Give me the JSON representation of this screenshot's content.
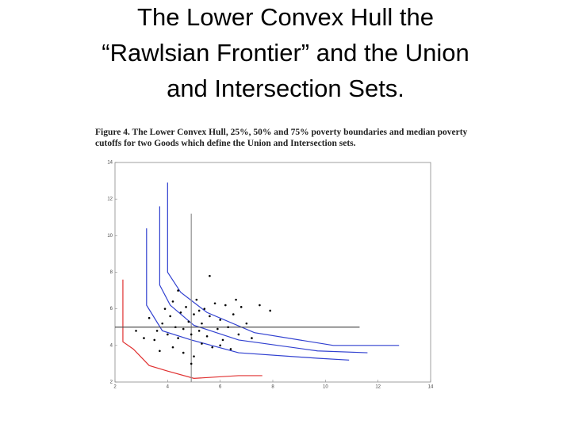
{
  "chart_data": {
    "type": "scatter",
    "title": [
      "The Lower Convex Hull the",
      "“Rawlsian Frontier” and the Union",
      "and Intersection Sets."
    ],
    "caption": [
      "Figure 4. The Lower Convex Hull, 25%, 50% and 75% poverty boundaries and median poverty",
      "cutoffs for two Goods which define the Union and Intersection sets."
    ],
    "xlim": [
      2,
      14
    ],
    "ylim": [
      2,
      14
    ],
    "xticks": [
      2,
      4,
      6,
      8,
      10,
      12,
      14
    ],
    "yticks": [
      2,
      4,
      6,
      8,
      10,
      12,
      14
    ],
    "lines": [
      {
        "color": "#e03030",
        "x": [
          2.3,
          2.3,
          2.7,
          3.3,
          4.0,
          5.0,
          6.7,
          7.6
        ],
        "values": [
          7.6,
          4.2,
          3.8,
          2.9,
          2.6,
          2.2,
          2.35,
          2.35
        ]
      },
      {
        "color": "#3040d0",
        "x": [
          3.2,
          3.2,
          3.8,
          4.9,
          6.7,
          9.7,
          10.9
        ],
        "values": [
          10.4,
          6.2,
          4.8,
          4.3,
          3.6,
          3.3,
          3.2
        ]
      },
      {
        "color": "#3040d0",
        "x": [
          3.7,
          3.7,
          4.1,
          5.0,
          6.7,
          9.7,
          11.6
        ],
        "values": [
          11.6,
          7.3,
          6.2,
          5.1,
          4.3,
          3.7,
          3.6
        ]
      },
      {
        "color": "#3040d0",
        "x": [
          4.0,
          4.0,
          4.5,
          5.5,
          7.3,
          10.3,
          12.8
        ],
        "values": [
          12.9,
          8.0,
          6.9,
          5.8,
          4.7,
          4.0,
          4.0
        ]
      },
      {
        "color": "#909090",
        "x": [
          4.9,
          4.9
        ],
        "values": [
          11.2,
          2.0
        ]
      },
      {
        "color": "#505050",
        "x": [
          2.0,
          11.3
        ],
        "values": [
          5.0,
          5.0
        ]
      }
    ],
    "points": {
      "color": "#000000",
      "x": [
        3.3,
        3.5,
        3.6,
        3.8,
        3.9,
        4.0,
        4.1,
        4.2,
        4.2,
        4.3,
        4.4,
        4.5,
        4.6,
        4.6,
        4.7,
        4.8,
        4.9,
        5.0,
        5.0,
        5.1,
        5.2,
        5.3,
        5.3,
        5.4,
        5.5,
        5.6,
        5.7,
        5.8,
        5.9,
        6.0,
        6.1,
        6.2,
        6.3,
        6.4,
        6.5,
        6.7,
        6.8,
        7.0,
        7.2,
        7.5,
        7.9,
        5.6,
        4.4,
        3.1,
        2.8,
        3.7,
        4.9,
        6.0,
        6.6,
        5.2
      ],
      "values": [
        5.5,
        4.3,
        4.8,
        5.2,
        6.0,
        4.6,
        5.6,
        3.9,
        6.4,
        5.0,
        4.4,
        5.8,
        4.9,
        3.6,
        6.1,
        5.3,
        4.6,
        5.7,
        3.4,
        6.5,
        4.8,
        5.2,
        4.1,
        6.0,
        4.5,
        5.6,
        3.9,
        6.3,
        4.9,
        5.4,
        4.3,
        6.2,
        5.0,
        3.8,
        5.7,
        4.6,
        6.1,
        5.2,
        4.4,
        6.2,
        5.9,
        7.8,
        7.0,
        4.4,
        4.8,
        3.7,
        3.0,
        4.0,
        6.5,
        5.9
      ]
    }
  }
}
